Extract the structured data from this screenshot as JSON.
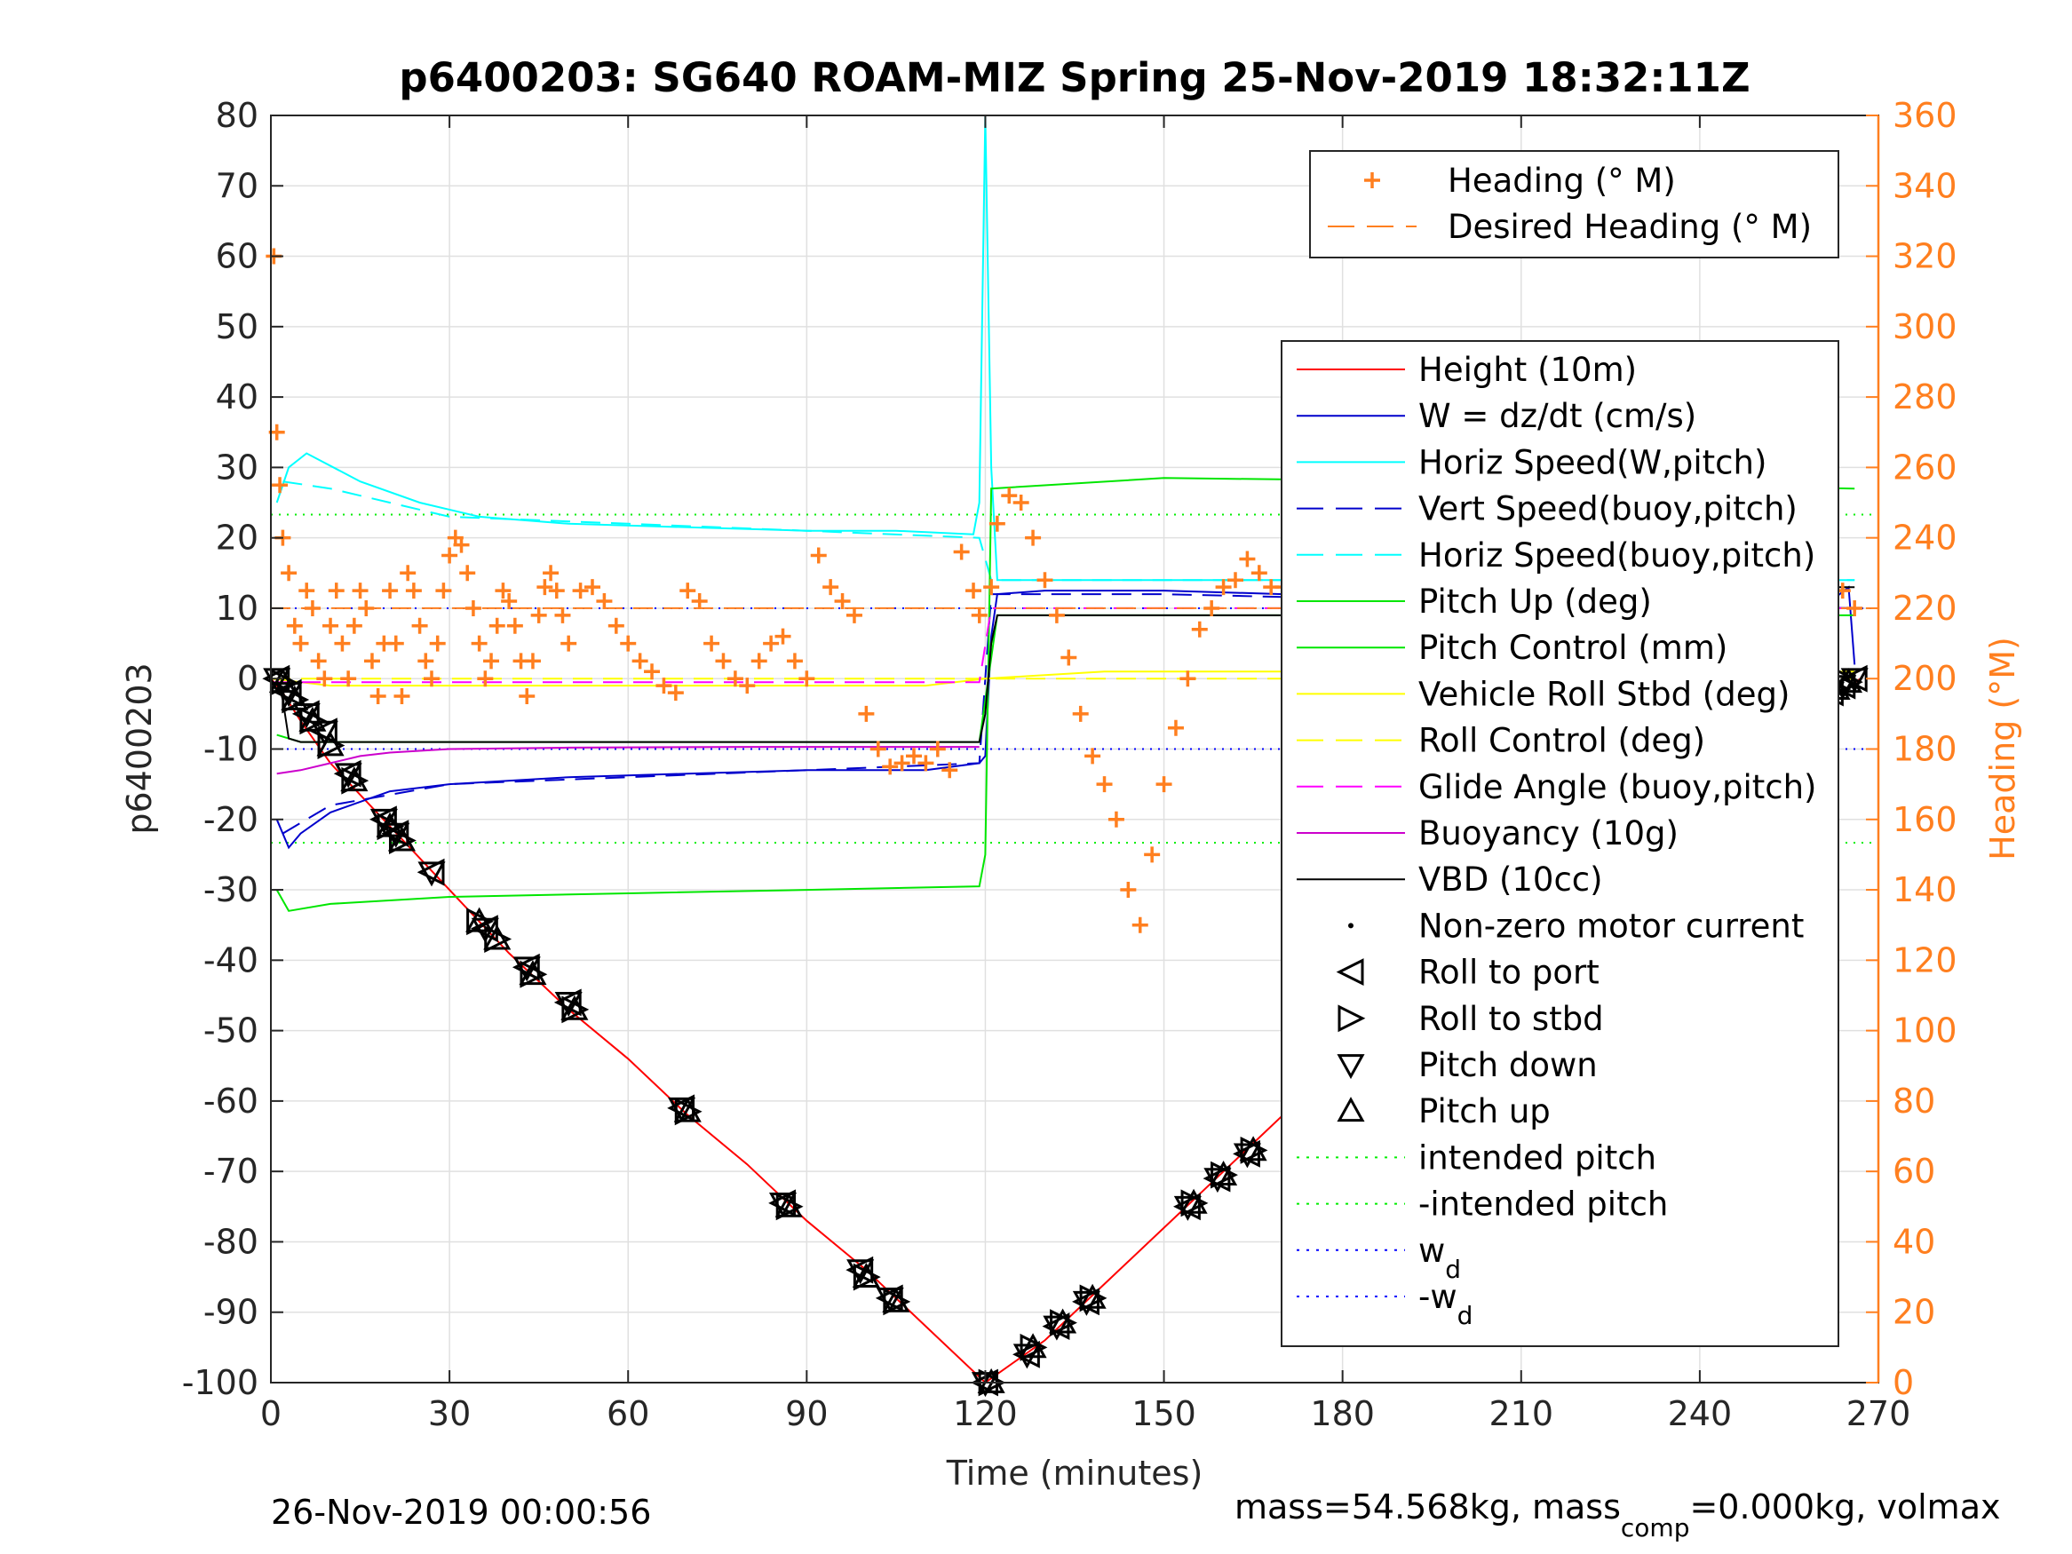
{
  "chart_data": {
    "type": "line",
    "title": "p6400203: SG640 ROAM-MIZ Spring 25-Nov-2019 18:32:11Z",
    "xlabel": "Time (minutes)",
    "ylabel_left": "p6400203",
    "ylabel_right": "Heading (°M)",
    "xlim": [
      0,
      270
    ],
    "ylim_left": [
      -100,
      80
    ],
    "ylim_right": [
      0,
      360
    ],
    "xticks": [
      0,
      30,
      60,
      90,
      120,
      150,
      180,
      210,
      240,
      270
    ],
    "yticks_left": [
      -100,
      -90,
      -80,
      -70,
      -60,
      -50,
      -40,
      -30,
      -20,
      -10,
      0,
      10,
      20,
      30,
      40,
      50,
      60,
      70,
      80
    ],
    "yticks_right": [
      0,
      20,
      40,
      60,
      80,
      100,
      120,
      140,
      160,
      180,
      200,
      220,
      240,
      260,
      280,
      300,
      320,
      340,
      360
    ],
    "grid": true,
    "footer_left": "26-Nov-2019 00:00:56",
    "footer_right": {
      "part1": "mass=54.568kg, mass",
      "sub1": "comp",
      "part2": "=0.000kg, volmax"
    },
    "colors": {
      "heading": "#ff7f1f",
      "height": "#ff0000",
      "w": "#0000cc",
      "horiz": "#00ffff",
      "pitch": "#00e600",
      "roll": "#ffff00",
      "glide": "#ff00ff",
      "buoy": "#cc00cc",
      "vbd": "#000000",
      "intended": "#00ee00",
      "wd": "#0000ff",
      "right_axis": "#ff7f1f"
    },
    "legend_heading": {
      "placement": "top-right",
      "entries": [
        {
          "label": "Heading (° M)",
          "style": "plus",
          "color": "#ff7f1f"
        },
        {
          "label": "Desired Heading (° M)",
          "style": "dashed",
          "color": "#ff7f1f"
        }
      ]
    },
    "legend_main": {
      "placement": "right",
      "entries": [
        {
          "label": "Height (10m)",
          "style": "solid",
          "color": "#ff0000"
        },
        {
          "label": "W = dz/dt (cm/s)",
          "style": "solid",
          "color": "#0000cc"
        },
        {
          "label": "Horiz Speed(W,pitch)",
          "style": "solid",
          "color": "#00ffff"
        },
        {
          "label": "Vert Speed(buoy,pitch)",
          "style": "dashed",
          "color": "#0000cc"
        },
        {
          "label": "Horiz Speed(buoy,pitch)",
          "style": "dashed",
          "color": "#00ffff"
        },
        {
          "label": "Pitch Up (deg)",
          "style": "solid",
          "color": "#00e600"
        },
        {
          "label": "Pitch Control (mm)",
          "style": "solid",
          "color": "#00e600"
        },
        {
          "label": "Vehicle Roll Stbd (deg)",
          "style": "solid",
          "color": "#ffff00"
        },
        {
          "label": "Roll Control (deg)",
          "style": "dashed",
          "color": "#ffff00"
        },
        {
          "label": "Glide Angle (buoy,pitch)",
          "style": "dashed",
          "color": "#ff00ff"
        },
        {
          "label": "Buoyancy (10g)",
          "style": "solid",
          "color": "#cc00cc"
        },
        {
          "label": "VBD (10cc)",
          "style": "solid",
          "color": "#000000"
        },
        {
          "label": "Non-zero motor current",
          "style": "dot",
          "color": "#000000"
        },
        {
          "label": "Roll to port",
          "style": "tri-left",
          "color": "#000000"
        },
        {
          "label": "Roll to stbd",
          "style": "tri-right",
          "color": "#000000"
        },
        {
          "label": "Pitch down",
          "style": "tri-down",
          "color": "#000000"
        },
        {
          "label": "Pitch up",
          "style": "tri-up",
          "color": "#000000"
        },
        {
          "label": "intended pitch",
          "style": "dotted",
          "color": "#00ee00"
        },
        {
          "label": "-intended pitch",
          "style": "dotted",
          "color": "#00ee00"
        },
        {
          "label": "w",
          "sub": "d",
          "style": "dotted",
          "color": "#0000ff"
        },
        {
          "label": "-w",
          "sub": "d",
          "style": "dotted",
          "color": "#0000ff"
        }
      ]
    },
    "series": [
      {
        "name": "Height (10m)",
        "axis": "left",
        "style": "solid",
        "color": "#ff0000",
        "x": [
          0,
          2,
          5,
          10,
          20,
          30,
          40,
          50,
          60,
          70,
          80,
          90,
          100,
          110,
          120,
          130,
          140,
          150,
          160,
          170,
          180,
          190,
          200,
          210,
          220,
          230,
          240,
          250,
          260,
          267
        ],
        "y": [
          0,
          -2,
          -6,
          -12,
          -21,
          -30,
          -39,
          -47,
          -54,
          -62,
          -69,
          -77,
          -84,
          -92,
          -100,
          -94,
          -86,
          -78,
          -70,
          -62,
          -54,
          -46,
          -39,
          -31,
          -28,
          -22,
          -16,
          -9,
          -4,
          0
        ]
      },
      {
        "name": "W = dz/dt (cm/s)",
        "axis": "left",
        "style": "solid",
        "color": "#0000cc",
        "x": [
          1,
          3,
          5,
          10,
          20,
          30,
          50,
          70,
          90,
          110,
          119,
          120,
          121,
          122,
          130,
          150,
          170,
          190,
          210,
          230,
          250,
          262,
          265,
          266
        ],
        "y": [
          -20,
          -24,
          -22,
          -19,
          -16,
          -15,
          -14,
          -13.5,
          -13,
          -13,
          -12,
          -11,
          6,
          12,
          12.5,
          12.5,
          12,
          11.5,
          11,
          10.5,
          10,
          11,
          13,
          2
        ]
      },
      {
        "name": "Horiz Speed(W,pitch)",
        "axis": "left",
        "style": "solid",
        "color": "#00ffff",
        "x": [
          1,
          3,
          6,
          15,
          25,
          35,
          50,
          70,
          90,
          105,
          118,
          119,
          120,
          121,
          122,
          140,
          170,
          200,
          230,
          266
        ],
        "y": [
          25,
          30,
          32,
          28,
          25,
          23,
          22,
          21.5,
          21,
          21,
          20.5,
          25,
          82,
          30,
          14,
          14,
          14,
          14,
          14,
          14
        ]
      },
      {
        "name": "Vert Speed(buoy,pitch)",
        "axis": "left",
        "style": "dashed",
        "color": "#0000cc",
        "x": [
          2,
          10,
          30,
          60,
          90,
          119,
          121,
          150,
          200,
          266
        ],
        "y": [
          -22,
          -18,
          -15,
          -14,
          -13,
          -12,
          12,
          12,
          11,
          10
        ]
      },
      {
        "name": "Horiz Speed(buoy,pitch)",
        "axis": "left",
        "style": "dashed",
        "color": "#00ffff",
        "x": [
          2,
          10,
          30,
          60,
          90,
          119,
          121,
          150,
          200,
          266
        ],
        "y": [
          28,
          27,
          23,
          22,
          21,
          20,
          14,
          14,
          14,
          14
        ]
      },
      {
        "name": "Pitch Up (deg)",
        "axis": "left",
        "style": "solid",
        "color": "#00e600",
        "x": [
          1,
          3,
          10,
          30,
          60,
          90,
          119,
          120,
          121,
          150,
          200,
          266
        ],
        "y": [
          -30,
          -33,
          -32,
          -31,
          -30.5,
          -30,
          -29.5,
          -25,
          27,
          28.5,
          28,
          27
        ]
      },
      {
        "name": "Pitch Control (mm)",
        "axis": "left",
        "style": "solid",
        "color": "#00e600",
        "x": [
          1,
          5,
          30,
          60,
          90,
          119,
          122,
          150,
          200,
          266
        ],
        "y": [
          -8,
          -9,
          -9,
          -9,
          -9,
          -9,
          9,
          9,
          9,
          9
        ]
      },
      {
        "name": "Vehicle Roll Stbd (deg)",
        "axis": "left",
        "style": "solid",
        "color": "#ffff00",
        "x": [
          0,
          10,
          30,
          50,
          70,
          90,
          110,
          120,
          140,
          160,
          180,
          200,
          220,
          240,
          266
        ],
        "y": [
          0,
          -1,
          -1,
          -1,
          -1,
          -1,
          -1,
          0,
          1,
          1,
          1,
          1,
          1,
          1,
          1
        ]
      },
      {
        "name": "Roll Control (deg)",
        "axis": "left",
        "style": "dashed",
        "color": "#ffff00",
        "x": [
          0,
          30,
          60,
          90,
          120,
          150,
          180,
          210,
          240,
          266
        ],
        "y": [
          0,
          0,
          0,
          0,
          0,
          0,
          0,
          0,
          0,
          0
        ]
      },
      {
        "name": "Glide Angle (buoy,pitch)",
        "axis": "left",
        "style": "dashed",
        "color": "#ff00ff",
        "x": [
          0,
          119,
          121,
          266
        ],
        "y": [
          -0.5,
          -0.5,
          10,
          10
        ]
      },
      {
        "name": "Buoyancy (10g)",
        "axis": "left",
        "style": "solid",
        "color": "#cc00cc",
        "x": [
          1,
          5,
          10,
          15,
          20,
          30,
          50,
          80,
          119
        ],
        "y": [
          -13.5,
          -13,
          -12,
          -11,
          -10.5,
          -10,
          -9.8,
          -9.7,
          -9.7
        ]
      },
      {
        "name": "VBD (10cc)",
        "axis": "left",
        "style": "solid",
        "color": "#000000",
        "x": [
          1,
          2,
          3,
          5,
          30,
          60,
          90,
          119,
          120,
          121,
          122,
          150,
          200,
          260,
          261,
          266
        ],
        "y": [
          0,
          -3,
          -8.5,
          -9,
          -9,
          -9,
          -9,
          -9,
          -5,
          5,
          9,
          9,
          9,
          9,
          13,
          13
        ]
      },
      {
        "name": "Desired Heading (° M)",
        "axis": "right",
        "style": "dashed",
        "color": "#ff7f1f",
        "x": [
          0,
          266
        ],
        "y": [
          220,
          220
        ]
      }
    ],
    "reference_lines": [
      {
        "name": "intended pitch",
        "value": 23.3,
        "color": "#00ee00"
      },
      {
        "name": "-intended pitch",
        "value": -23.3,
        "color": "#00ee00"
      },
      {
        "name": "w_d",
        "value": 10,
        "color": "#0000ff"
      },
      {
        "name": "-w_d",
        "value": -10,
        "color": "#0000ff"
      }
    ],
    "heading_points": {
      "x": [
        0.5,
        1,
        1.5,
        2,
        3,
        4,
        5,
        6,
        7,
        8,
        9,
        10,
        11,
        12,
        13,
        14,
        15,
        16,
        17,
        18,
        19,
        20,
        21,
        22,
        23,
        24,
        25,
        26,
        27,
        28,
        29,
        30,
        31,
        32,
        33,
        34,
        35,
        36,
        37,
        38,
        39,
        40,
        41,
        42,
        43,
        44,
        45,
        46,
        47,
        48,
        49,
        50,
        52,
        54,
        56,
        58,
        60,
        62,
        64,
        66,
        68,
        70,
        72,
        74,
        76,
        78,
        80,
        82,
        84,
        86,
        88,
        90,
        92,
        94,
        96,
        98,
        100,
        102,
        104,
        106,
        108,
        110,
        112,
        114,
        116,
        118,
        119,
        121,
        122,
        124,
        126,
        128,
        130,
        132,
        134,
        136,
        138,
        140,
        142,
        144,
        146,
        148,
        150,
        152,
        154,
        156,
        158,
        160,
        162,
        164,
        166,
        168,
        170,
        172,
        174,
        176,
        178,
        180,
        182,
        184,
        186,
        188,
        190,
        192,
        194,
        196,
        198,
        200,
        202,
        204,
        206,
        208,
        210,
        212,
        214,
        216,
        218,
        220,
        222,
        224,
        226,
        228,
        230,
        232,
        234,
        236,
        238,
        240,
        242,
        244,
        246,
        248,
        250,
        252,
        254,
        256,
        258,
        260,
        262,
        264,
        266
      ],
      "y": [
        320,
        270,
        255,
        240,
        230,
        215,
        210,
        225,
        220,
        205,
        200,
        215,
        225,
        210,
        200,
        215,
        225,
        220,
        205,
        195,
        210,
        225,
        210,
        195,
        230,
        225,
        215,
        205,
        200,
        210,
        225,
        235,
        240,
        238,
        230,
        220,
        210,
        200,
        205,
        215,
        225,
        222,
        215,
        205,
        195,
        205,
        218,
        226,
        230,
        225,
        218,
        210,
        225,
        226,
        222,
        215,
        210,
        205,
        202,
        198,
        196,
        225,
        222,
        210,
        205,
        200,
        198,
        205,
        210,
        212,
        205,
        200,
        235,
        226,
        222,
        218,
        190,
        180,
        175,
        176,
        178,
        176,
        180,
        174,
        236,
        225,
        218,
        226,
        244,
        252,
        250,
        240,
        228,
        218,
        206,
        190,
        178,
        170,
        160,
        140,
        130,
        150,
        170,
        186,
        200,
        214,
        220,
        226,
        228,
        234,
        230,
        226,
        226,
        220,
        214,
        220,
        208,
        195,
        170,
        165,
        162,
        158,
        170,
        246,
        250,
        236,
        233,
        240,
        236,
        228,
        224,
        226,
        230,
        226,
        220,
        210,
        202,
        192,
        182,
        170,
        160,
        150,
        236,
        230,
        216,
        210,
        214,
        220,
        226,
        222,
        216,
        214,
        212,
        210,
        210,
        205,
        200,
        230,
        218,
        225,
        220
      ]
    },
    "markers": {
      "x": [
        1,
        2,
        3,
        4,
        6,
        7,
        9,
        10,
        13,
        14,
        19,
        20,
        21,
        22,
        27,
        35,
        36,
        38,
        43,
        44,
        50,
        51,
        69,
        70,
        86,
        87,
        99,
        100,
        104,
        105,
        120,
        121,
        127,
        128,
        132,
        133,
        137,
        138,
        154,
        155,
        159,
        160,
        164,
        165,
        185,
        186,
        200,
        201,
        205,
        206,
        208,
        209,
        214,
        215,
        218,
        219,
        221,
        230,
        231,
        241,
        242,
        244,
        245,
        246,
        247,
        249,
        250,
        251,
        252,
        253,
        254,
        255,
        256,
        257,
        258,
        259,
        260,
        261,
        262,
        263,
        264,
        265,
        266
      ],
      "y": [
        0,
        -0.5,
        -2,
        -3,
        -5,
        -6,
        -7.5,
        -9.5,
        -13.5,
        -14.5,
        -20,
        -21,
        -22,
        -23,
        -27.5,
        -34.5,
        -35.5,
        -37,
        -41,
        -42,
        -46,
        -47,
        -61,
        -61.5,
        -74.5,
        -75,
        -84,
        -85,
        -88,
        -88.5,
        -100,
        -100,
        -96,
        -95,
        -92,
        -91.5,
        -88.5,
        -88,
        -75,
        -74.5,
        -71,
        -70.5,
        -67.5,
        -67,
        -52.5,
        -52,
        -43,
        -42.5,
        -39.5,
        -39,
        -37,
        -36.5,
        -33,
        -32.5,
        -30.5,
        -30,
        -29,
        -22.5,
        -22,
        -16,
        -15.5,
        -14,
        -13.5,
        -12.5,
        -12,
        -10.5,
        -10,
        -9,
        -8.5,
        -8,
        -7,
        -6.5,
        -6,
        -5,
        -4.5,
        -4,
        -3.5,
        -3,
        -2,
        -1.5,
        -1,
        -0.5,
        0
      ]
    }
  }
}
